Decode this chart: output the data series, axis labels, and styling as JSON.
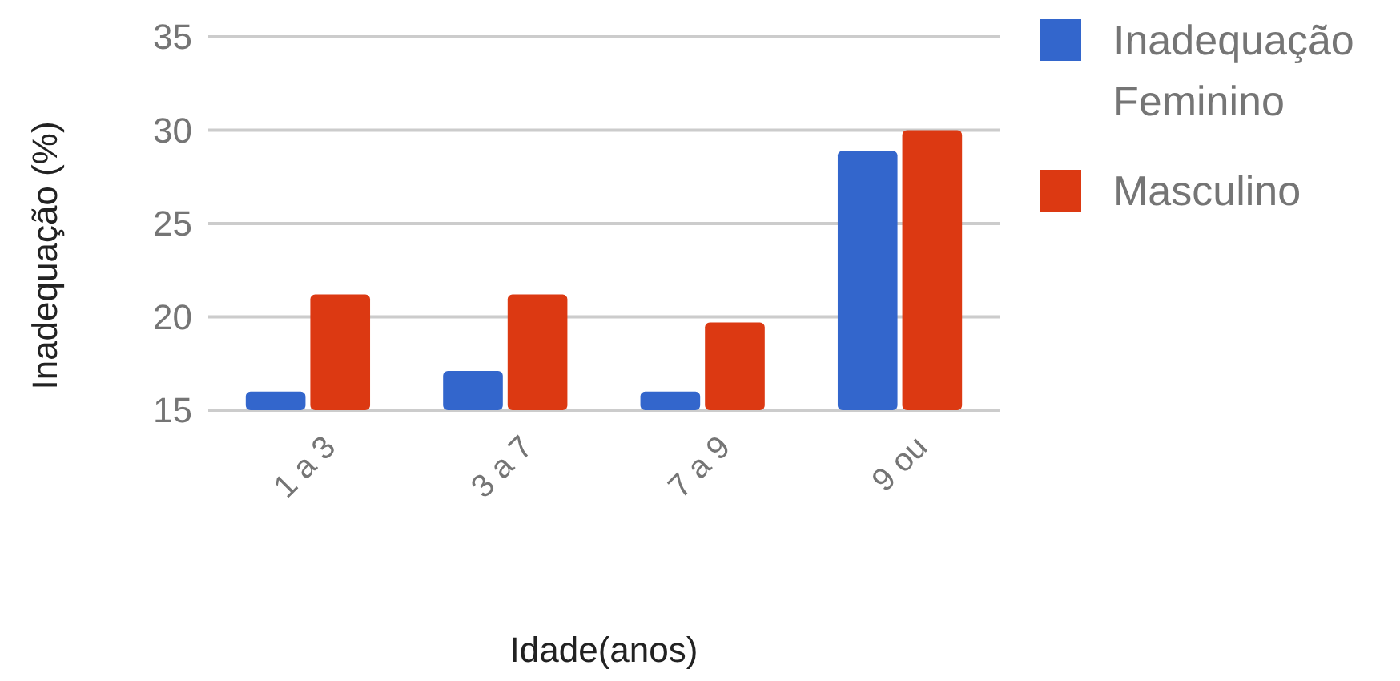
{
  "chart_data": {
    "type": "bar",
    "xlabel": "Idade(anos)",
    "ylabel": "Inadequação (%)",
    "categories": [
      "1 a 3",
      "3 a 7",
      "7 a 9",
      "9 ou"
    ],
    "series": [
      {
        "name": "Inadequação Feminino",
        "color": "#3366cc",
        "values": [
          16.0,
          17.1,
          16.0,
          28.9
        ]
      },
      {
        "name": "Masculino",
        "color": "#dc3912",
        "values": [
          21.2,
          21.2,
          19.7,
          30.0
        ]
      }
    ],
    "ylim": [
      15,
      35
    ],
    "yticks": [
      15,
      20,
      25,
      30,
      35
    ],
    "grid": "y",
    "legend": "top right"
  }
}
